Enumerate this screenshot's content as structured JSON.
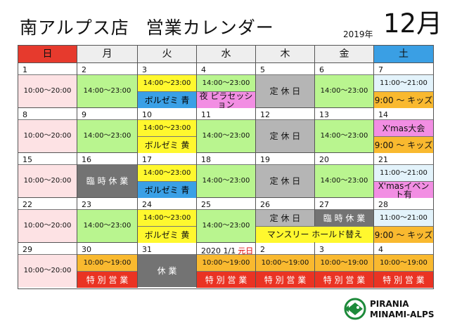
{
  "title": "南アルプス店",
  "subtitle": "営業カレンダー",
  "year": "2019年",
  "month": "12月",
  "weekdays": [
    {
      "label": "日",
      "color": "#e63a2d"
    },
    {
      "label": "月",
      "color": "#eeeeee"
    },
    {
      "label": "火",
      "color": "#eeeeee"
    },
    {
      "label": "水",
      "color": "#eeeeee"
    },
    {
      "label": "木",
      "color": "#eeeeee"
    },
    {
      "label": "金",
      "color": "#eeeeee"
    },
    {
      "label": "土",
      "color": "#3a9fe4"
    }
  ],
  "weeks": [
    [
      {
        "num": "1",
        "blocks": [
          {
            "t": "10:00～20:00",
            "c": "pink",
            "h": 1
          }
        ]
      },
      {
        "num": "2",
        "blocks": [
          {
            "t": "14:00～23:00",
            "c": "green",
            "h": 1
          }
        ]
      },
      {
        "num": "3",
        "blocks": [
          {
            "t": "14:00～23:00",
            "c": "yellow",
            "h": 0.5
          },
          {
            "t": "ボルゼミ 青",
            "c": "blue",
            "h": 0.5
          }
        ]
      },
      {
        "num": "4",
        "blocks": [
          {
            "t": "14:00～23:00",
            "c": "green",
            "h": 0.5
          },
          {
            "t": "夜 ピラセッション",
            "c": "magenta",
            "h": 0.5
          }
        ]
      },
      {
        "num": "5",
        "blocks": [
          {
            "t": "定 休 日",
            "c": "gray",
            "h": 1
          }
        ]
      },
      {
        "num": "6",
        "blocks": [
          {
            "t": "14:00～23:00",
            "c": "green",
            "h": 1
          }
        ]
      },
      {
        "num": "7",
        "blocks": [
          {
            "t": "11:00～21:00",
            "c": "lblue",
            "h": 0.5
          },
          {
            "t": "9:00 ～ キッズ",
            "c": "orange",
            "h": 0.5
          }
        ]
      }
    ],
    [
      {
        "num": "8",
        "blocks": [
          {
            "t": "10:00～20:00",
            "c": "pink",
            "h": 1
          }
        ]
      },
      {
        "num": "9",
        "blocks": [
          {
            "t": "14:00～23:00",
            "c": "green",
            "h": 1
          }
        ]
      },
      {
        "num": "10",
        "blocks": [
          {
            "t": "14:00～23:00",
            "c": "yellow",
            "h": 0.5
          },
          {
            "t": "ボルゼミ 黄",
            "c": "yellow",
            "h": 0.5
          }
        ]
      },
      {
        "num": "11",
        "blocks": [
          {
            "t": "14:00～23:00",
            "c": "green",
            "h": 1
          }
        ]
      },
      {
        "num": "12",
        "blocks": [
          {
            "t": "定 休 日",
            "c": "gray",
            "h": 1
          }
        ]
      },
      {
        "num": "13",
        "blocks": [
          {
            "t": "14:00～23:00",
            "c": "green",
            "h": 1
          }
        ]
      },
      {
        "num": "14",
        "blocks": [
          {
            "t": "X'mas大会",
            "c": "magenta",
            "h": 0.5
          },
          {
            "t": "9:00 ～ キッズ",
            "c": "orange",
            "h": 0.5
          }
        ]
      }
    ],
    [
      {
        "num": "15",
        "blocks": [
          {
            "t": "10:00～20:00",
            "c": "pink",
            "h": 1
          }
        ]
      },
      {
        "num": "16",
        "blocks": [
          {
            "t": "臨 時 休 業",
            "c": "dgray",
            "h": 1
          }
        ]
      },
      {
        "num": "17",
        "blocks": [
          {
            "t": "14:00～23:00",
            "c": "yellow",
            "h": 0.5
          },
          {
            "t": "ボルゼミ 青",
            "c": "blue",
            "h": 0.5
          }
        ]
      },
      {
        "num": "18",
        "blocks": [
          {
            "t": "14:00～23:00",
            "c": "green",
            "h": 1
          }
        ]
      },
      {
        "num": "19",
        "blocks": [
          {
            "t": "定 休 日",
            "c": "gray",
            "h": 1
          }
        ]
      },
      {
        "num": "20",
        "blocks": [
          {
            "t": "14:00～23:00",
            "c": "green",
            "h": 1
          }
        ]
      },
      {
        "num": "21",
        "blocks": [
          {
            "t": "11:00～21:00",
            "c": "lblue",
            "h": 0.5
          },
          {
            "t": "X'masイベント有",
            "c": "magenta",
            "h": 0.5
          }
        ]
      }
    ],
    [
      {
        "num": "22",
        "blocks": [
          {
            "t": "10:00～20:00",
            "c": "pink",
            "h": 1
          }
        ]
      },
      {
        "num": "23",
        "blocks": [
          {
            "t": "14:00～23:00",
            "c": "green",
            "h": 1
          }
        ]
      },
      {
        "num": "24",
        "blocks": [
          {
            "t": "14:00～23:00",
            "c": "yellow",
            "h": 0.5
          },
          {
            "t": "ボルゼミ 黄",
            "c": "yellow",
            "h": 0.5
          }
        ]
      },
      {
        "num": "25",
        "blocks": [
          {
            "t": "14:00～23:00",
            "c": "green",
            "h": 1
          }
        ]
      },
      {
        "num": "26",
        "blocks": [
          {
            "t": "定 休 日",
            "c": "gray",
            "h": 0.5
          },
          {
            "t": "",
            "c": "yellow",
            "h": 0.5
          }
        ]
      },
      {
        "num": "27",
        "blocks": [
          {
            "t": "臨 時 休 業",
            "c": "dgray",
            "h": 0.5
          },
          {
            "t": "",
            "c": "yellow",
            "h": 0.5
          }
        ]
      },
      {
        "num": "28",
        "blocks": [
          {
            "t": "11:00～21:00",
            "c": "lblue",
            "h": 0.5
          },
          {
            "t": "9:00 ～ キッズ",
            "c": "orange",
            "h": 0.5
          }
        ]
      }
    ],
    [
      {
        "num": "29",
        "blocks": [
          {
            "t": "10:00～20:00",
            "c": "pink",
            "h": 1
          }
        ]
      },
      {
        "num": "30",
        "blocks": [
          {
            "t": "10:00～19:00",
            "c": "orange",
            "h": 0.5
          },
          {
            "t": "特 別 営 業",
            "c": "red",
            "h": 0.5
          }
        ]
      },
      {
        "num": "31",
        "blocks": [
          {
            "t": "休 業",
            "c": "dgray",
            "h": 1
          }
        ]
      },
      {
        "num": "2020 1/1",
        "numExtra": "元日",
        "blocks": [
          {
            "t": "10:00～19:00",
            "c": "orange",
            "h": 0.5
          },
          {
            "t": "特 別 営 業",
            "c": "red",
            "h": 0.5
          }
        ]
      },
      {
        "num": "2",
        "blocks": [
          {
            "t": "10:00～19:00",
            "c": "orange",
            "h": 0.5
          },
          {
            "t": "特 別 営 業",
            "c": "red",
            "h": 0.5
          }
        ]
      },
      {
        "num": "3",
        "blocks": [
          {
            "t": "10:00～19:00",
            "c": "orange",
            "h": 0.5
          },
          {
            "t": "特 別 営 業",
            "c": "red",
            "h": 0.5
          }
        ]
      },
      {
        "num": "4",
        "blocks": [
          {
            "t": "10:00～19:00",
            "c": "orange",
            "h": 0.5
          },
          {
            "t": "特 別 営 業",
            "c": "red",
            "h": 0.5
          }
        ]
      }
    ]
  ],
  "span_banner": "マンスリー ホールド替え",
  "logo": {
    "line1": "PIRANIA",
    "line2": "MINAMI-ALPS",
    "icon": "pirania-fish-logo"
  }
}
